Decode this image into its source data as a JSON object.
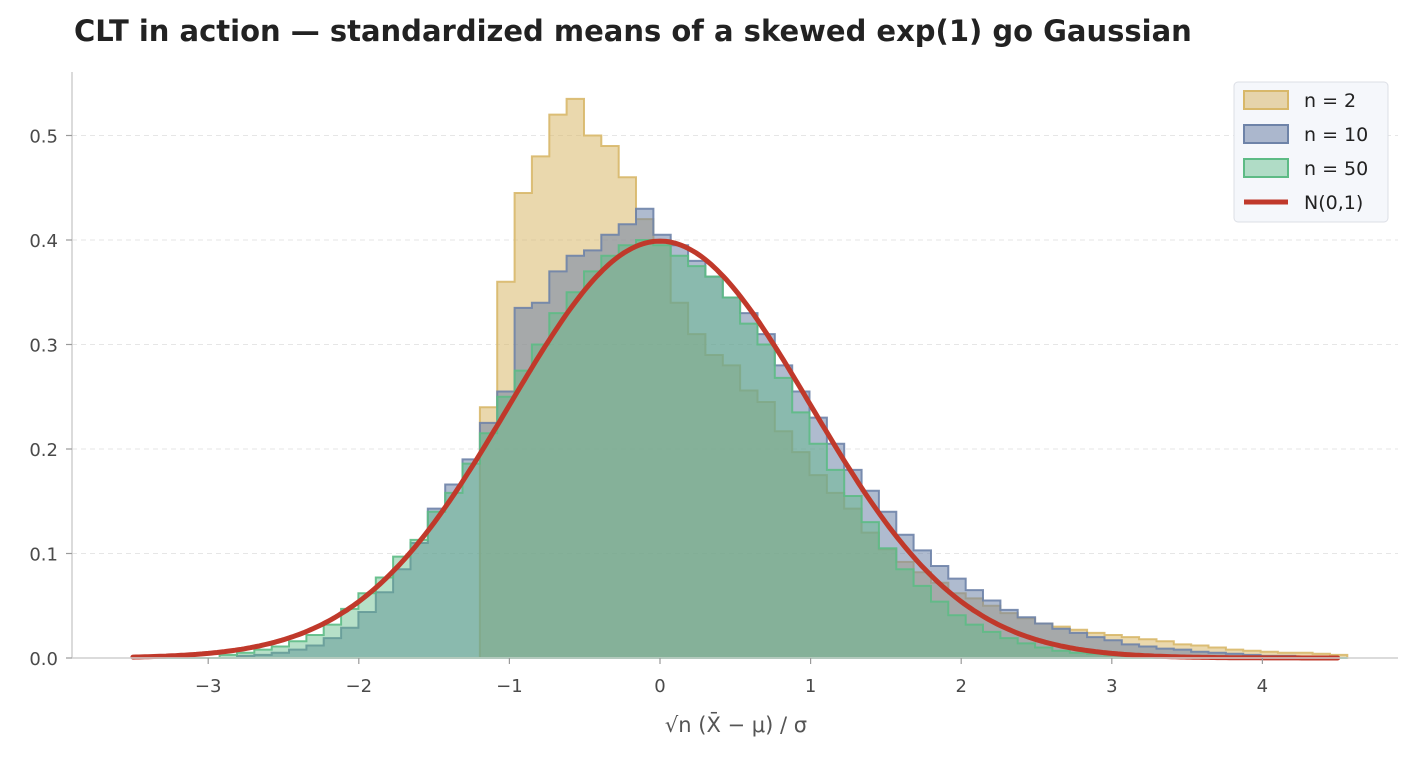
{
  "chart_data": {
    "type": "histogram",
    "title": "CLT in action — standardized means of a skewed exp(1) go Gaussian",
    "xlabel": "√n (X̄ − μ) / σ",
    "ylabel": "",
    "xlim": [
      -3.65,
      5.15
    ],
    "ylim": [
      0,
      0.56
    ],
    "xticks": [
      -3,
      -2,
      -1,
      0,
      1,
      2,
      3,
      4
    ],
    "yticks": [
      0.0,
      0.1,
      0.2,
      0.3,
      0.4,
      0.5
    ],
    "grid": "horizontal dashed",
    "legend_position": "top-right",
    "bin_edges_start": -3.5,
    "bin_width": 0.1152,
    "series": [
      {
        "name": "n = 2",
        "kind": "histogram",
        "color": "#d8b86a",
        "values": [
          0,
          0,
          0,
          0,
          0,
          0,
          0,
          0,
          0,
          0,
          0,
          0,
          0,
          0,
          0,
          0,
          0,
          0,
          0,
          0,
          0.24,
          0.36,
          0.445,
          0.48,
          0.52,
          0.535,
          0.5,
          0.49,
          0.46,
          0.42,
          0.4,
          0.34,
          0.31,
          0.29,
          0.28,
          0.256,
          0.245,
          0.217,
          0.197,
          0.175,
          0.158,
          0.143,
          0.12,
          0.104,
          0.092,
          0.082,
          0.072,
          0.062,
          0.057,
          0.05,
          0.043,
          0.038,
          0.033,
          0.03,
          0.027,
          0.024,
          0.022,
          0.02,
          0.018,
          0.016,
          0.013,
          0.012,
          0.01,
          0.008,
          0.007,
          0.006,
          0.005,
          0.005,
          0.004,
          0.003
        ]
      },
      {
        "name": "n = 10",
        "kind": "histogram",
        "color": "#6e83a8",
        "values": [
          0,
          0,
          0,
          0,
          0,
          0,
          0.002,
          0.003,
          0.005,
          0.008,
          0.012,
          0.019,
          0.029,
          0.044,
          0.063,
          0.085,
          0.11,
          0.143,
          0.166,
          0.19,
          0.225,
          0.255,
          0.335,
          0.34,
          0.37,
          0.385,
          0.39,
          0.405,
          0.415,
          0.43,
          0.405,
          0.395,
          0.38,
          0.365,
          0.345,
          0.33,
          0.31,
          0.28,
          0.255,
          0.23,
          0.205,
          0.18,
          0.16,
          0.14,
          0.118,
          0.103,
          0.088,
          0.076,
          0.065,
          0.055,
          0.046,
          0.039,
          0.033,
          0.028,
          0.024,
          0.02,
          0.017,
          0.013,
          0.011,
          0.009,
          0.008,
          0.006,
          0.005,
          0.004,
          0.003,
          0.002,
          0.002,
          0.001,
          0.001,
          0
        ]
      },
      {
        "name": "n = 50",
        "kind": "histogram",
        "color": "#5dbb85",
        "values": [
          0,
          0,
          0,
          0,
          0,
          0.003,
          0.005,
          0.008,
          0.011,
          0.016,
          0.022,
          0.032,
          0.047,
          0.062,
          0.077,
          0.097,
          0.113,
          0.14,
          0.158,
          0.186,
          0.215,
          0.25,
          0.275,
          0.3,
          0.33,
          0.35,
          0.37,
          0.385,
          0.395,
          0.4,
          0.395,
          0.385,
          0.375,
          0.365,
          0.345,
          0.32,
          0.3,
          0.268,
          0.235,
          0.205,
          0.18,
          0.155,
          0.13,
          0.105,
          0.085,
          0.069,
          0.054,
          0.041,
          0.032,
          0.025,
          0.019,
          0.014,
          0.01,
          0.007,
          0.005,
          0.004,
          0.003,
          0.002,
          0.001,
          0.001,
          0,
          0,
          0,
          0,
          0,
          0,
          0,
          0,
          0,
          0
        ]
      },
      {
        "name": "N(0,1)",
        "kind": "line",
        "color": "#c0392b",
        "function": "standard normal pdf",
        "x_range": [
          -3.5,
          4.5
        ]
      }
    ]
  }
}
